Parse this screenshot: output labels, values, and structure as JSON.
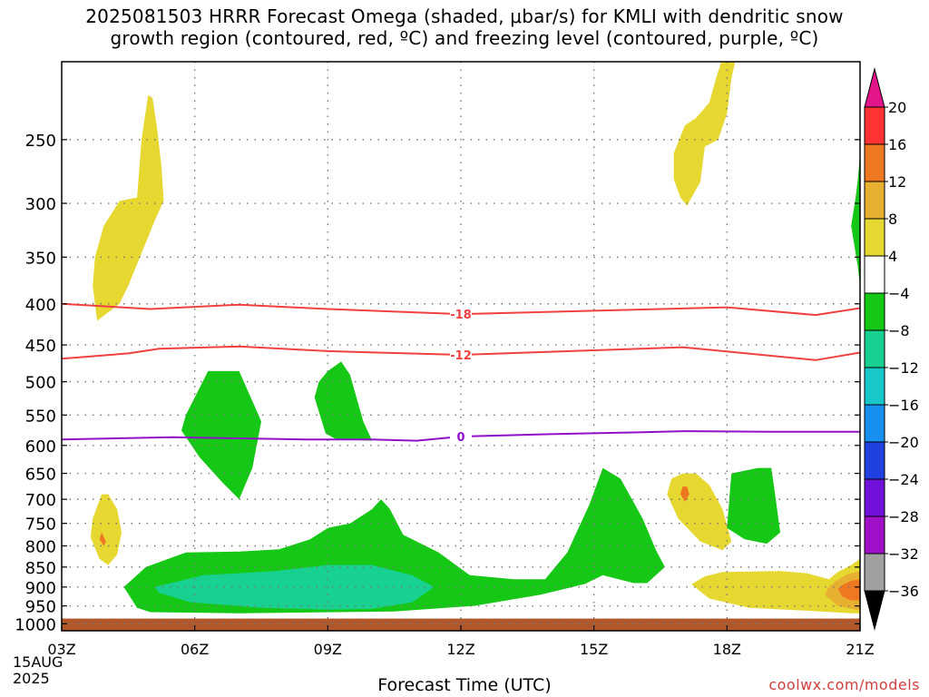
{
  "title_line1": "2025081503 HRRR Forecast Omega (shaded, μbar/s) for KMLI with dendritic snow",
  "title_line2": "growth region (contoured, red, ºC) and freezing level (contoured, purple, ºC)",
  "xlabel": "Forecast Time (UTC)",
  "credit": "coolwx.com/models",
  "date_line1": "15AUG",
  "date_line2": "2025",
  "chart_data": {
    "type": "heatmap",
    "x_ticks": [
      "03Z",
      "06Z",
      "09Z",
      "12Z",
      "15Z",
      "18Z",
      "21Z"
    ],
    "x_hours": [
      3,
      6,
      9,
      12,
      15,
      18,
      21
    ],
    "xlim": [
      3,
      21
    ],
    "y_ticks": [
      250,
      300,
      350,
      400,
      450,
      500,
      550,
      600,
      650,
      700,
      750,
      800,
      850,
      900,
      950,
      1000
    ],
    "ylim": [
      1020,
      200
    ],
    "y_scale": "log",
    "grid": true,
    "colorbar": {
      "labels": [
        "20",
        "16",
        "12",
        "8",
        "4",
        "−4",
        "−8",
        "−12",
        "−16",
        "−20",
        "−24",
        "−28",
        "−32",
        "−36"
      ],
      "levels": [
        20,
        16,
        12,
        8,
        4,
        -4,
        -8,
        -12,
        -16,
        -20,
        -24,
        -28,
        -32,
        -36
      ],
      "colors": [
        "#ff3333",
        "#ee7722",
        "#e8b030",
        "#e6d830",
        "#ffffff",
        "#16c816",
        "#18d090",
        "#18c8c8",
        "#1890f0",
        "#2040e0",
        "#7010d8",
        "#a010c8",
        "#a0a0a0"
      ],
      "top_color": "#e2168a",
      "bottom_color": "#000000"
    },
    "contours": [
      {
        "level": "-18",
        "color": "#f04040",
        "points": [
          [
            3,
            400
          ],
          [
            5,
            406
          ],
          [
            7,
            401
          ],
          [
            9,
            406
          ],
          [
            12,
            412
          ],
          [
            15,
            408
          ],
          [
            18,
            404
          ],
          [
            20,
            413
          ],
          [
            21,
            405
          ]
        ]
      },
      {
        "level": "-12",
        "color": "#f04040",
        "points": [
          [
            3,
            468
          ],
          [
            4.5,
            461
          ],
          [
            5.2,
            455
          ],
          [
            7,
            452
          ],
          [
            9,
            458
          ],
          [
            12,
            463
          ],
          [
            15,
            457
          ],
          [
            17,
            453
          ],
          [
            20,
            470
          ],
          [
            21,
            460
          ]
        ]
      },
      {
        "level": "0",
        "color": "#9010c8",
        "points": [
          [
            3,
            590
          ],
          [
            5.5,
            586
          ],
          [
            7,
            588
          ],
          [
            8.5,
            590
          ],
          [
            10,
            590
          ],
          [
            11,
            592
          ],
          [
            12,
            585
          ],
          [
            14,
            581
          ],
          [
            16,
            578
          ],
          [
            17,
            576
          ],
          [
            19,
            577
          ],
          [
            21,
            577
          ]
        ]
      }
    ],
    "regions": [
      {
        "level": "4",
        "color": "#e6d830",
        "points": [
          [
            3.8,
            420
          ],
          [
            4.3,
            400
          ],
          [
            4.5,
            380
          ],
          [
            5.1,
            315
          ],
          [
            5.3,
            298
          ],
          [
            5.25,
            270
          ],
          [
            5.15,
            242
          ],
          [
            5.05,
            222
          ],
          [
            4.95,
            220
          ],
          [
            4.8,
            250
          ],
          [
            4.7,
            295
          ],
          [
            4.3,
            298
          ],
          [
            3.95,
            320
          ],
          [
            3.75,
            350
          ],
          [
            3.7,
            380
          ]
        ]
      },
      {
        "level": "4",
        "color": "#e6d830",
        "points": [
          [
            16.8,
            280
          ],
          [
            16.95,
            295
          ],
          [
            17.1,
            302
          ],
          [
            17.4,
            282
          ],
          [
            17.5,
            255
          ],
          [
            17.8,
            250
          ],
          [
            18.0,
            232
          ],
          [
            18.1,
            210
          ],
          [
            18.2,
            198
          ],
          [
            17.9,
            198
          ],
          [
            17.75,
            210
          ],
          [
            17.6,
            225
          ],
          [
            17.3,
            235
          ],
          [
            17.05,
            240
          ],
          [
            16.8,
            260
          ]
        ]
      },
      {
        "level": "4",
        "color": "#e6d830",
        "points": [
          [
            3.9,
            690
          ],
          [
            3.7,
            740
          ],
          [
            3.65,
            780
          ],
          [
            3.85,
            830
          ],
          [
            4.05,
            845
          ],
          [
            4.25,
            820
          ],
          [
            4.35,
            770
          ],
          [
            4.25,
            720
          ],
          [
            4.05,
            690
          ]
        ]
      },
      {
        "level": "4",
        "color": "#e6d830",
        "points": [
          [
            17,
            650
          ],
          [
            16.75,
            660
          ],
          [
            16.65,
            690
          ],
          [
            16.9,
            740
          ],
          [
            17.4,
            790
          ],
          [
            17.9,
            810
          ],
          [
            18.1,
            790
          ],
          [
            17.9,
            720
          ],
          [
            17.6,
            672
          ],
          [
            17.3,
            650
          ]
        ]
      },
      {
        "level": "4",
        "color": "#e6d830",
        "points": [
          [
            19.2,
            860
          ],
          [
            17.9,
            862
          ],
          [
            17.5,
            873
          ],
          [
            17.2,
            893
          ],
          [
            17.6,
            930
          ],
          [
            18.5,
            955
          ],
          [
            19.8,
            963
          ],
          [
            20.8,
            970
          ],
          [
            21,
            970
          ],
          [
            21,
            830
          ],
          [
            20.8,
            845
          ],
          [
            20.5,
            862
          ],
          [
            20.3,
            880
          ],
          [
            19.8,
            865
          ]
        ]
      },
      {
        "level": "8",
        "color": "#e8b030",
        "points": [
          [
            20.3,
            900
          ],
          [
            20.2,
            920
          ],
          [
            20.5,
            950
          ],
          [
            20.9,
            960
          ],
          [
            21,
            960
          ],
          [
            21,
            860
          ],
          [
            20.7,
            868
          ],
          [
            20.45,
            885
          ]
        ]
      },
      {
        "level": "12",
        "color": "#ee7722",
        "points": [
          [
            20.5,
            905
          ],
          [
            20.6,
            925
          ],
          [
            20.8,
            935
          ],
          [
            21,
            935
          ],
          [
            21,
            880
          ],
          [
            20.8,
            884
          ],
          [
            20.6,
            895
          ]
        ]
      },
      {
        "level": "8",
        "color": "#ee7722",
        "points": [
          [
            3.9,
            770
          ],
          [
            3.85,
            785
          ],
          [
            3.95,
            800
          ],
          [
            4.0,
            790
          ]
        ]
      },
      {
        "level": "8",
        "color": "#ee7722",
        "points": [
          [
            17.0,
            675
          ],
          [
            16.95,
            690
          ],
          [
            17.05,
            705
          ],
          [
            17.15,
            690
          ],
          [
            17.1,
            675
          ]
        ]
      },
      {
        "level": "-4",
        "color": "#16c816",
        "points": [
          [
            20.95,
            360
          ],
          [
            20.8,
            320
          ],
          [
            20.9,
            295
          ],
          [
            20.95,
            280
          ],
          [
            21,
            260
          ],
          [
            21,
            380
          ]
        ]
      },
      {
        "level": "-4",
        "color": "#16c816",
        "points": [
          [
            6.3,
            485
          ],
          [
            5.8,
            550
          ],
          [
            5.7,
            575
          ],
          [
            6.1,
            620
          ],
          [
            6.6,
            665
          ],
          [
            7,
            700
          ],
          [
            7.3,
            640
          ],
          [
            7.5,
            560
          ],
          [
            7.0,
            485
          ]
        ]
      },
      {
        "level": "-4",
        "color": "#16c816",
        "points": [
          [
            8.7,
            523
          ],
          [
            8.95,
            580
          ],
          [
            9.2,
            590
          ],
          [
            10,
            592
          ],
          [
            9.8,
            560
          ],
          [
            9.5,
            490
          ],
          [
            9.3,
            472
          ],
          [
            9.0,
            485
          ],
          [
            8.8,
            500
          ]
        ]
      },
      {
        "level": "-4",
        "color": "#16c816",
        "points": [
          [
            18.1,
            650
          ],
          [
            18.0,
            760
          ],
          [
            18.4,
            785
          ],
          [
            18.9,
            795
          ],
          [
            19.2,
            770
          ],
          [
            19.1,
            700
          ],
          [
            19.0,
            640
          ],
          [
            18.7,
            640
          ]
        ]
      },
      {
        "level": "-4",
        "color": "#16c816",
        "points": [
          [
            4.4,
            900
          ],
          [
            4.5,
            890
          ],
          [
            4.9,
            850
          ],
          [
            5.8,
            815
          ],
          [
            7.0,
            813
          ],
          [
            7.9,
            808
          ],
          [
            8.6,
            785
          ],
          [
            9,
            760
          ],
          [
            9.5,
            750
          ],
          [
            10,
            720
          ],
          [
            10.2,
            700
          ],
          [
            10.4,
            720
          ],
          [
            10.7,
            775
          ],
          [
            11.5,
            815
          ],
          [
            12.2,
            870
          ],
          [
            13.2,
            880
          ],
          [
            13.9,
            880
          ],
          [
            14.4,
            815
          ],
          [
            14.9,
            710
          ],
          [
            15.2,
            640
          ],
          [
            15.6,
            660
          ],
          [
            16.1,
            740
          ],
          [
            16.4,
            810
          ],
          [
            16.6,
            850
          ],
          [
            16.2,
            890
          ],
          [
            15.9,
            890
          ],
          [
            15.2,
            870
          ],
          [
            14.8,
            892
          ],
          [
            13.8,
            920
          ],
          [
            12.3,
            950
          ],
          [
            10.5,
            965
          ],
          [
            7.0,
            970
          ],
          [
            5.0,
            967
          ],
          [
            4.7,
            955
          ]
        ]
      },
      {
        "level": "-8",
        "color": "#18d090",
        "points": [
          [
            5.1,
            900
          ],
          [
            6.2,
            870
          ],
          [
            7.8,
            860
          ],
          [
            9,
            845
          ],
          [
            10,
            845
          ],
          [
            10.9,
            870
          ],
          [
            11.4,
            900
          ],
          [
            10.9,
            940
          ],
          [
            10,
            958
          ],
          [
            9,
            960
          ],
          [
            7.5,
            955
          ],
          [
            5.9,
            940
          ],
          [
            5.2,
            915
          ]
        ]
      }
    ],
    "ground": {
      "level": "surface",
      "color": "#b0582c",
      "top_mb": 985,
      "bottom_mb": 1020
    }
  }
}
